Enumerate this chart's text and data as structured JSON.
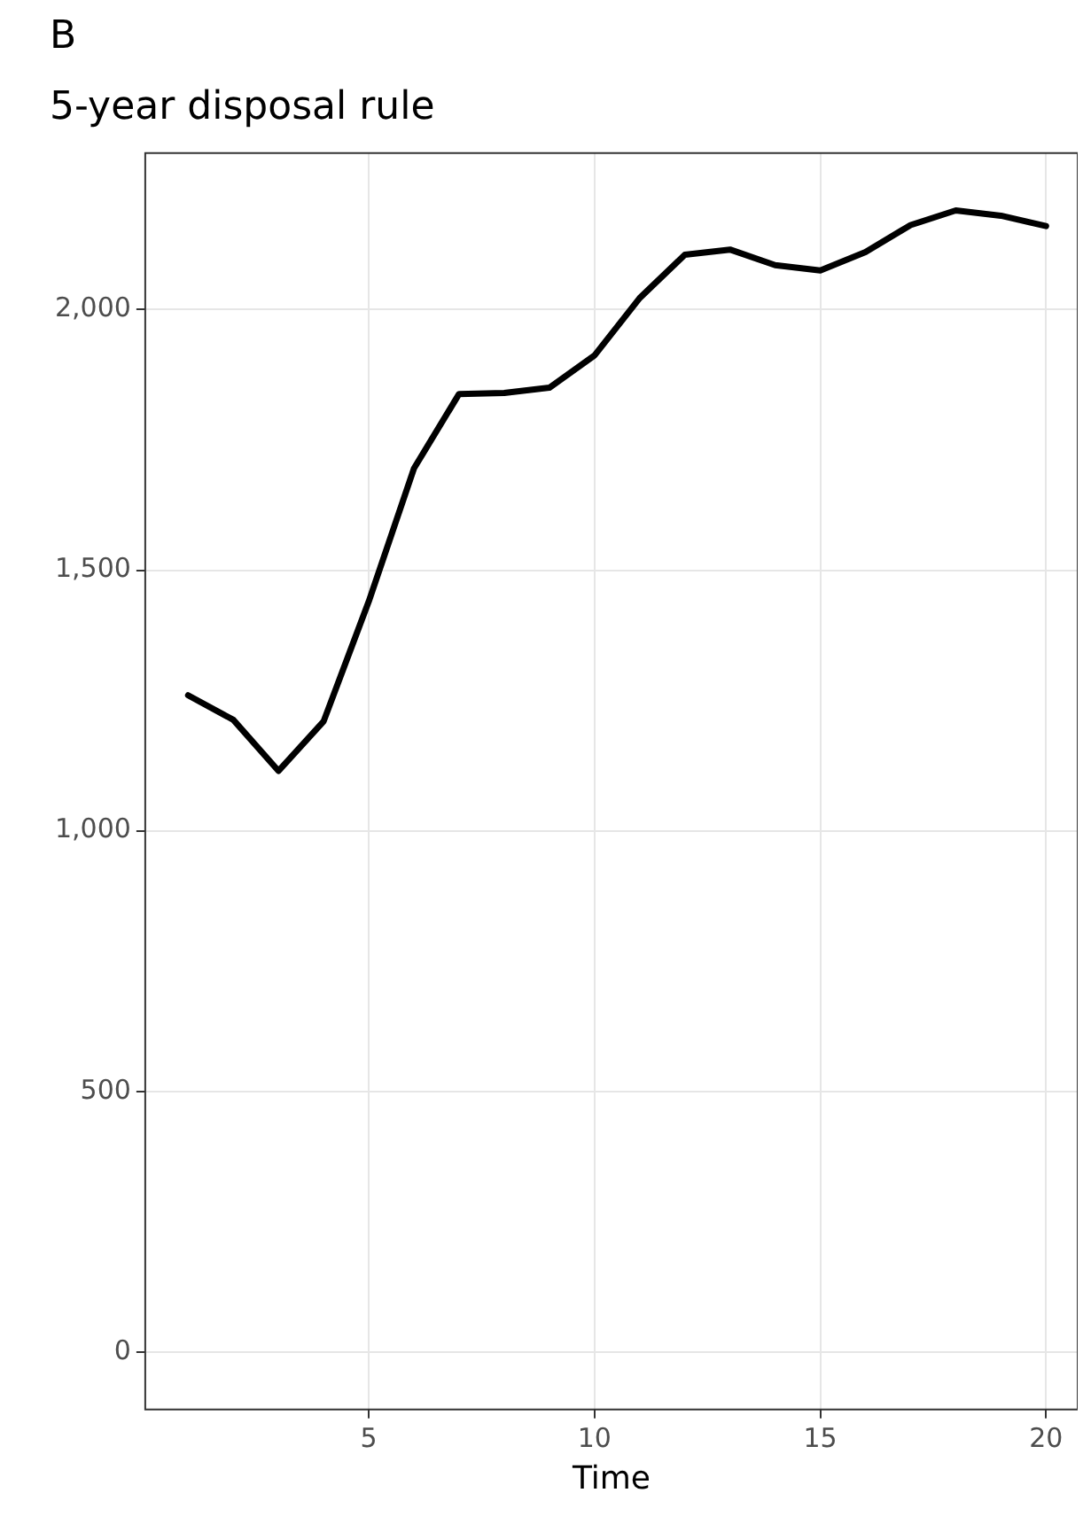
{
  "chart_data": {
    "type": "line",
    "title": "5-year disposal rule",
    "xlabel": "Time",
    "annotations": [
      "B"
    ],
    "x": [
      1,
      2,
      3,
      4,
      5,
      6,
      7,
      8,
      9,
      10,
      11,
      12,
      13,
      14,
      15,
      16,
      17,
      18,
      19,
      20
    ],
    "series": [
      {
        "color": "#000000",
        "values": [
          1260,
          1213,
          1115,
          1210,
          1440,
          1695,
          1838,
          1840,
          1850,
          1912,
          2022,
          2105,
          2115,
          2085,
          2075,
          2110,
          2162,
          2190,
          2180,
          2160
        ]
      }
    ],
    "xlim": [
      0.05,
      20.7
    ],
    "ylim": [
      -110,
      2300
    ],
    "xticks": [
      5,
      10,
      15,
      20
    ],
    "yticks": [
      0,
      500,
      {
        "value": 1000,
        "label": "1,000"
      },
      {
        "value": 1500,
        "label": "1,500"
      },
      {
        "value": 2000,
        "label": "2,000"
      }
    ],
    "grid": true,
    "legend": false,
    "marker": "none",
    "line_style": "solid"
  }
}
